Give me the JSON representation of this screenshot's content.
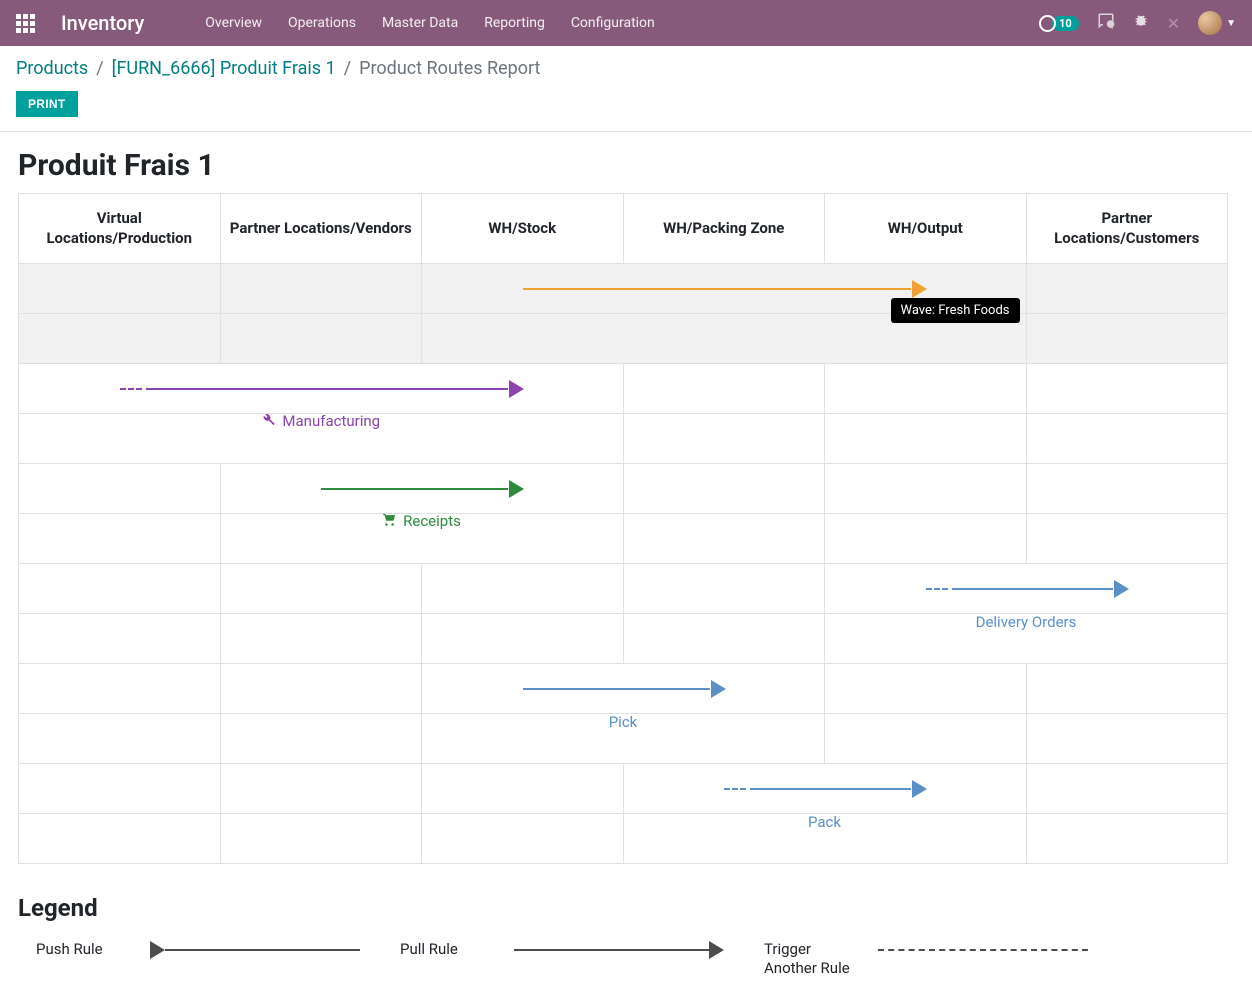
{
  "navbar": {
    "brand": "Inventory",
    "menus": [
      "Overview",
      "Operations",
      "Master Data",
      "Reporting",
      "Configuration"
    ],
    "activity_count": "10"
  },
  "breadcrumb": {
    "items": [
      {
        "label": "Products",
        "link": true
      },
      {
        "label": "[FURN_6666] Produit Frais 1",
        "link": true
      },
      {
        "label": "Product Routes Report",
        "link": false
      }
    ],
    "print_label": "PRINT"
  },
  "page": {
    "title": "Produit Frais 1"
  },
  "columns": [
    "Virtual Locations/Production",
    "Partner Locations/Vendors",
    "WH/Stock",
    "WH/Packing Zone",
    "WH/Output",
    "Partner Locations/Customers"
  ],
  "colors": {
    "orange": "#F0A131",
    "purple": "#8E44AD",
    "green": "#2E8B3D",
    "blue": "#5B8FC7",
    "black": "#4C4C4C"
  },
  "rules": [
    {
      "label": "Pick",
      "color": "orange",
      "from_col": 2,
      "to_col": 4,
      "type": "pull",
      "trigger_another": false,
      "icon": null,
      "tooltip": "Wave: Fresh Foods",
      "highlight": true
    },
    {
      "label": "Manufacturing",
      "color": "purple",
      "from_col": 0,
      "to_col": 2,
      "type": "pull",
      "trigger_another": true,
      "icon": "wrench"
    },
    {
      "label": "Receipts",
      "color": "green",
      "from_col": 1,
      "to_col": 2,
      "type": "pull",
      "trigger_another": false,
      "icon": "cart"
    },
    {
      "label": "Delivery Orders",
      "color": "blue",
      "from_col": 4,
      "to_col": 5,
      "type": "pull",
      "trigger_another": true,
      "icon": null
    },
    {
      "label": "Pick",
      "color": "blue",
      "from_col": 2,
      "to_col": 3,
      "type": "pull",
      "trigger_another": false,
      "icon": null
    },
    {
      "label": "Pack",
      "color": "blue",
      "from_col": 3,
      "to_col": 4,
      "type": "pull",
      "trigger_another": true,
      "icon": null
    }
  ],
  "legend": {
    "title": "Legend",
    "items": [
      {
        "label": "Push Rule",
        "type": "push"
      },
      {
        "label": "Pull Rule",
        "type": "pull"
      },
      {
        "label": "Trigger Another Rule",
        "type": "trigger"
      }
    ]
  }
}
